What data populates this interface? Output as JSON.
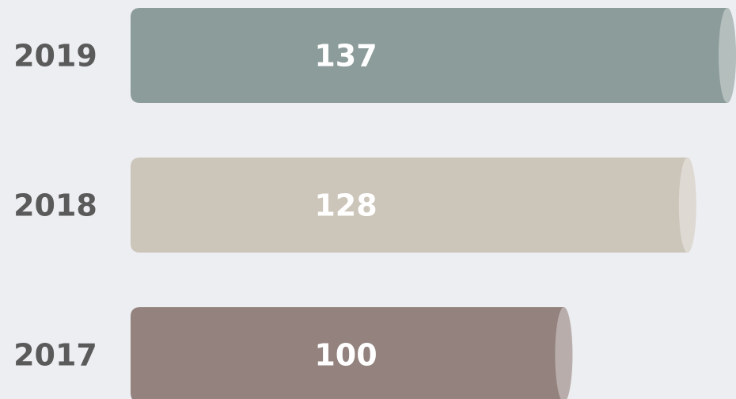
{
  "chart_data": {
    "type": "bar",
    "orientation": "horizontal",
    "categories": [
      "2019",
      "2018",
      "2017"
    ],
    "values": [
      137,
      128,
      100
    ],
    "colors": [
      "#8c9c9a",
      "#ccc5ba",
      "#93827e"
    ]
  }
}
